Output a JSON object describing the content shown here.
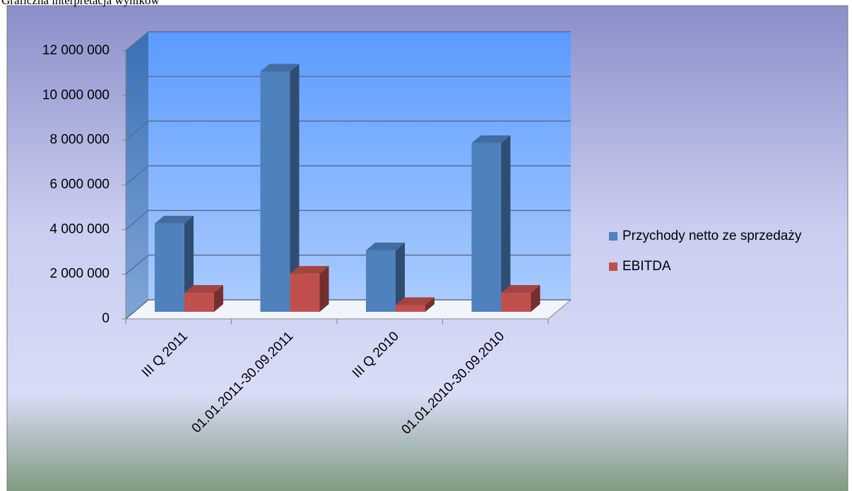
{
  "caption": "Graficzna interpretacja wyników",
  "chart_data": {
    "type": "bar3d",
    "categories": [
      "III Q 2011",
      "01.01.2011-30.09.2011",
      "III Q 2010",
      "01.01.2010-30.09.2010"
    ],
    "series": [
      {
        "name": "Przychody netto ze sprzedaży",
        "color": "#4f81bd",
        "values": [
          3950000,
          10750000,
          2750000,
          7550000
        ]
      },
      {
        "name": "EBITDA",
        "color": "#c0504d",
        "values": [
          850000,
          1700000,
          300000,
          850000
        ]
      }
    ],
    "ylim": [
      0,
      12000000
    ],
    "yticks": [
      0,
      {
        "value": 2000000,
        "label": "2 000 000"
      },
      {
        "value": 4000000,
        "label": "4 000 000"
      },
      {
        "value": 6000000,
        "label": "6 000 000"
      },
      {
        "value": 8000000,
        "label": "8 000 000"
      },
      {
        "value": 10000000,
        "label": "10 000 000"
      },
      {
        "value": 12000000,
        "label": "12 000 000"
      }
    ],
    "grid": true,
    "legend": "right"
  }
}
